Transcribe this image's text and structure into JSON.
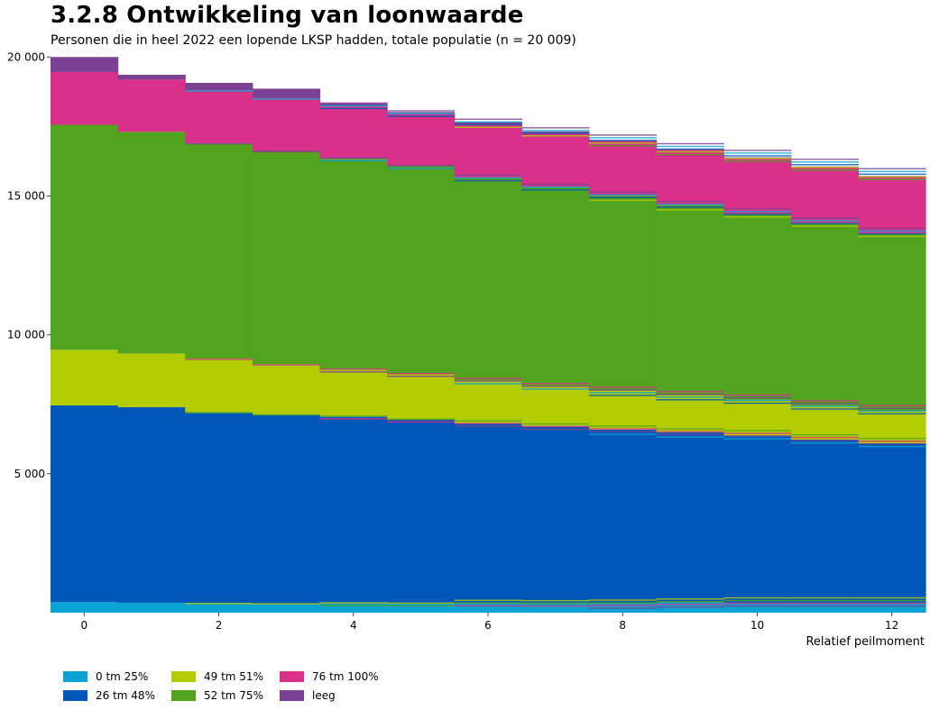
{
  "chart_data": {
    "type": "area",
    "title": "3.2.8 Ontwikkeling van loonwaarde",
    "subtitle": "Personen die in heel 2022 een lopende LKSP hadden, totale populatie (n = 20 009)",
    "xlabel": "Relatief peilmoment",
    "ylabel": "",
    "xlim": [
      -0.5,
      12.5
    ],
    "ylim": [
      0,
      20009
    ],
    "x_ticks": [
      0,
      2,
      4,
      6,
      8,
      10,
      12
    ],
    "y_ticks": [
      {
        "value": 5000,
        "label": "5 000"
      },
      {
        "value": 10000,
        "label": "10 000"
      },
      {
        "value": 15000,
        "label": "15 000"
      },
      {
        "value": 20000,
        "label": "20 000"
      }
    ],
    "x": [
      0,
      1,
      2,
      3,
      4,
      5,
      6,
      7,
      8,
      9,
      10,
      11,
      12
    ],
    "series": [
      {
        "name": "0 tm 25%",
        "color": "#0aa3d4",
        "values": [
          380,
          360,
          350,
          340,
          330,
          320,
          370,
          360,
          330,
          370,
          360,
          360,
          360
        ]
      },
      {
        "name": "26 tm 48%",
        "color": "#0057b8",
        "values": [
          7080,
          7040,
          6870,
          6800,
          6720,
          6620,
          6460,
          6360,
          6260,
          6120,
          6020,
          5870,
          5740
        ]
      },
      {
        "name": "49 tm 51%",
        "color": "#b2cc00",
        "values": [
          2000,
          1930,
          1920,
          1800,
          1690,
          1640,
          1530,
          1450,
          1400,
          1340,
          1280,
          1220,
          1180
        ]
      },
      {
        "name": "52 tm 75%",
        "color": "#52a31e",
        "values": [
          8100,
          7980,
          7760,
          7680,
          7600,
          7490,
          7310,
          7170,
          7020,
          6840,
          6700,
          6580,
          6380
        ]
      },
      {
        "name": "76 tm 100%",
        "color": "#d9318a",
        "values": [
          1900,
          1880,
          1900,
          1890,
          1880,
          1870,
          1920,
          1940,
          1960,
          1990,
          2010,
          2020,
          2050
        ]
      },
      {
        "name": "leeg",
        "color": "#7b4294",
        "values": [
          540,
          170,
          270,
          350,
          110,
          80,
          60,
          40,
          40,
          30,
          20,
          10,
          10
        ]
      }
    ]
  }
}
